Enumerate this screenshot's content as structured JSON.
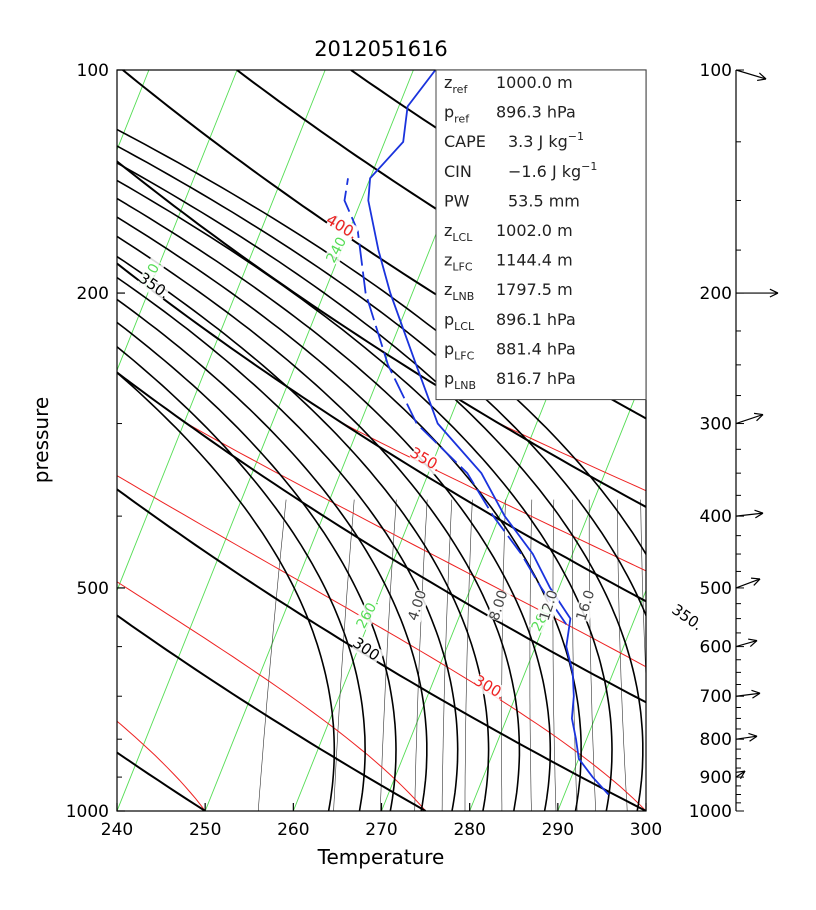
{
  "chart_data": {
    "type": "skew-t",
    "title": "2012051616",
    "xlabel": "Temperature",
    "ylabel": "pressure",
    "xlim": [
      240,
      300
    ],
    "ylim": [
      1000,
      100
    ],
    "x_ticks": [
      "240",
      "250",
      "260",
      "270",
      "280",
      "290",
      "300"
    ],
    "y_tick_labels": [
      {
        "p": 100,
        "label": "100"
      },
      {
        "p": 200,
        "label": "200"
      },
      {
        "p": 500,
        "label": "500"
      },
      {
        "p": 1000,
        "label": "1000"
      }
    ],
    "isotherm_labels": [
      {
        "T": 210,
        "p": 665,
        "label": "210."
      },
      {
        "T": 220,
        "p": 190,
        "label": "220."
      },
      {
        "T": 240,
        "p": 175,
        "label": "240."
      },
      {
        "T": 260,
        "p": 545,
        "label": "260."
      },
      {
        "T": 280,
        "p": 550,
        "label": "280."
      }
    ],
    "dry_adiabat_labels": [
      {
        "theta": 300,
        "p": 615,
        "label": "300."
      },
      {
        "theta": 350,
        "p": 198,
        "label": "350."
      },
      {
        "theta": 350,
        "p": 555,
        "label": "350."
      },
      {
        "theta": 400,
        "p": 165,
        "label": "400."
      },
      {
        "theta": 400,
        "p": 545,
        "label": "400."
      }
    ],
    "theta_e_labels": [
      {
        "theta_e": 300,
        "p": 690,
        "label": "300."
      },
      {
        "theta_e": 350,
        "p": 340,
        "label": "350."
      },
      {
        "theta_e": 400,
        "p": 165,
        "label": "400."
      }
    ],
    "mixing_ratio_labels": [
      {
        "w": 4,
        "p": 530,
        "label": "4.00"
      },
      {
        "w": 8,
        "p": 530,
        "label": "8.00"
      },
      {
        "w": 12,
        "p": 530,
        "label": "12.0"
      },
      {
        "w": 16,
        "p": 530,
        "label": "16.0"
      }
    ],
    "temperature_profile": [
      {
        "p": 950,
        "T": 295.0
      },
      {
        "p": 900,
        "T": 292.4
      },
      {
        "p": 850,
        "T": 290.0
      },
      {
        "p": 800,
        "T": 288.8
      },
      {
        "p": 750,
        "T": 287.4
      },
      {
        "p": 700,
        "T": 286.6
      },
      {
        "p": 650,
        "T": 285.4
      },
      {
        "p": 600,
        "T": 283.5
      },
      {
        "p": 550,
        "T": 282.7
      },
      {
        "p": 500,
        "T": 279.0
      },
      {
        "p": 450,
        "T": 275.5
      },
      {
        "p": 400,
        "T": 270.6
      },
      {
        "p": 350,
        "T": 266.0
      },
      {
        "p": 300,
        "T": 258.8
      },
      {
        "p": 250,
        "T": 253.7
      },
      {
        "p": 200,
        "T": 247.5
      },
      {
        "p": 175,
        "T": 244.2
      },
      {
        "p": 150,
        "T": 240.8
      },
      {
        "p": 140,
        "T": 240.0
      },
      {
        "p": 125,
        "T": 242.1
      },
      {
        "p": 112,
        "T": 241.0
      },
      {
        "p": 100,
        "T": 242.5
      }
    ],
    "dewpoint_profile": [
      {
        "p": 560,
        "T": 282.5
      },
      {
        "p": 500,
        "T": 278.0
      },
      {
        "p": 450,
        "T": 274.2
      },
      {
        "p": 400,
        "T": 269.3
      },
      {
        "p": 350,
        "T": 264.4
      },
      {
        "p": 300,
        "T": 256.4
      },
      {
        "p": 250,
        "T": 250.5
      },
      {
        "p": 200,
        "T": 244.7
      },
      {
        "p": 165,
        "T": 241.0
      },
      {
        "p": 150,
        "T": 238.1
      },
      {
        "p": 140,
        "T": 237.5
      }
    ],
    "info_box": [
      {
        "sym": "z",
        "sub": "ref",
        "value": "1000.0 m"
      },
      {
        "sym": "p",
        "sub": "ref",
        "value": "896.3 hPa"
      },
      {
        "sym": "CAPE",
        "sub": "",
        "value": "3.3 J kg",
        "sup": "−1"
      },
      {
        "sym": "CIN",
        "sub": "",
        "value": "−1.6 J kg",
        "sup": "−1"
      },
      {
        "sym": "PW",
        "sub": "",
        "value": "53.5 mm"
      },
      {
        "sym": "z",
        "sub": "LCL",
        "value": "1002.0 m"
      },
      {
        "sym": "z",
        "sub": "LFC",
        "value": "1144.4 m"
      },
      {
        "sym": "z",
        "sub": "LNB",
        "value": "1797.5 m"
      },
      {
        "sym": "p",
        "sub": "LCL",
        "value": "896.1 hPa"
      },
      {
        "sym": "p",
        "sub": "LFC",
        "value": "881.4 hPa"
      },
      {
        "sym": "p",
        "sub": "LNB",
        "value": "816.7 hPa"
      }
    ],
    "wind_profile": [
      {
        "p": 100,
        "label": "100",
        "u": 10,
        "v": -3
      },
      {
        "p": 200,
        "label": "200",
        "u": 14,
        "v": 0
      },
      {
        "p": 300,
        "label": "300",
        "u": 9,
        "v": 3
      },
      {
        "p": 400,
        "label": "400",
        "u": 9,
        "v": 1
      },
      {
        "p": 500,
        "label": "500",
        "u": 8,
        "v": 3
      },
      {
        "p": 600,
        "label": "600",
        "u": 7,
        "v": 2
      },
      {
        "p": 700,
        "label": "700",
        "u": 8,
        "v": 1
      },
      {
        "p": 800,
        "label": "800",
        "u": 7,
        "v": 1
      },
      {
        "p": 900,
        "label": "900",
        "u": 3,
        "v": 2
      },
      {
        "p": 1000,
        "label": "1000",
        "u": 0,
        "v": 0
      }
    ],
    "colors": {
      "isotherm": "#55dd55",
      "dry_adiabat": "#000000",
      "theta_e": "#ee2222",
      "mixing_ratio": "#333333",
      "profile": "#1a33dd",
      "frame": "#000000"
    }
  }
}
